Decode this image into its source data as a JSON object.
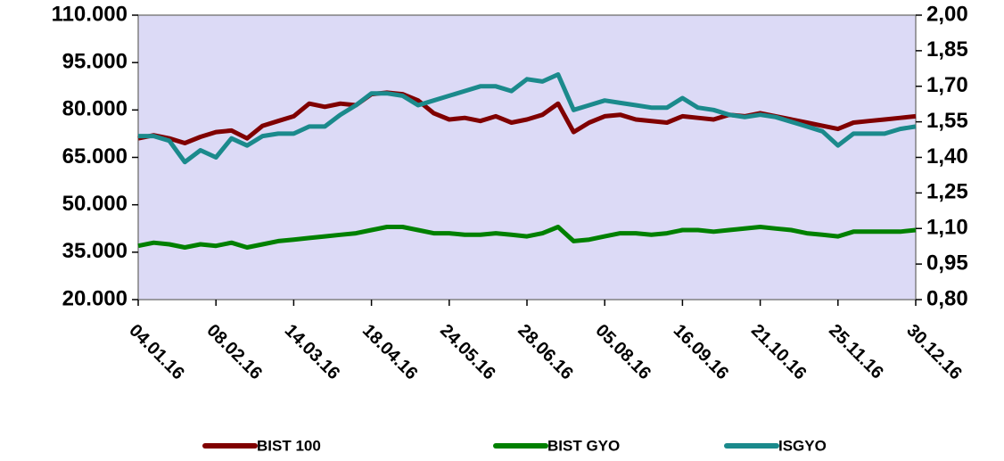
{
  "chart_data": {
    "type": "line",
    "categories": [
      "04.01.16",
      null,
      null,
      null,
      null,
      "08.02.16",
      null,
      null,
      null,
      null,
      "14.03.16",
      null,
      null,
      null,
      null,
      "18.04.16",
      null,
      null,
      null,
      null,
      "24.05.16",
      null,
      null,
      null,
      null,
      "28.06.16",
      null,
      null,
      null,
      null,
      "05.08.16",
      null,
      null,
      null,
      null,
      "16.09.16",
      null,
      null,
      null,
      null,
      "21.10.16",
      null,
      null,
      null,
      null,
      "25.11.16",
      null,
      null,
      null,
      null,
      "30.12.16"
    ],
    "series": [
      {
        "name": "BIST 100",
        "color": "#800000",
        "values": [
          71000,
          72000,
          71000,
          69500,
          71500,
          73000,
          73500,
          71000,
          75000,
          76500,
          78000,
          82000,
          81000,
          82000,
          81500,
          85000,
          85500,
          85000,
          83000,
          79000,
          77000,
          77500,
          76500,
          78000,
          76000,
          77000,
          78500,
          82000,
          73000,
          76000,
          78000,
          78500,
          77000,
          76500,
          76000,
          78000,
          77500,
          77000,
          78500,
          78000,
          79000,
          78000,
          77000,
          76000,
          75000,
          74000,
          76000,
          76500,
          77000,
          77500,
          78000
        ]
      },
      {
        "name": "BIST GYO",
        "color": "#008000",
        "values": [
          37000,
          38000,
          37500,
          36500,
          37500,
          37000,
          38000,
          36500,
          37500,
          38500,
          39000,
          39500,
          40000,
          40500,
          41000,
          42000,
          43000,
          43000,
          42000,
          41000,
          41000,
          40500,
          40500,
          41000,
          40500,
          40000,
          41000,
          43000,
          38500,
          39000,
          40000,
          41000,
          41000,
          40500,
          41000,
          42000,
          42000,
          41500,
          42000,
          42500,
          43000,
          42500,
          42000,
          41000,
          40500,
          40000,
          41500,
          41500,
          41500,
          41500,
          42000
        ]
      },
      {
        "name": "ISGYO",
        "color": "#1b8a8c",
        "axis": "y2",
        "values": [
          1.49,
          1.49,
          1.47,
          1.38,
          1.43,
          1.4,
          1.48,
          1.45,
          1.49,
          1.5,
          1.5,
          1.53,
          1.53,
          1.58,
          1.62,
          1.67,
          1.67,
          1.66,
          1.62,
          1.64,
          1.66,
          1.68,
          1.7,
          1.7,
          1.68,
          1.73,
          1.72,
          1.75,
          1.6,
          1.62,
          1.64,
          1.63,
          1.62,
          1.61,
          1.61,
          1.65,
          1.61,
          1.6,
          1.58,
          1.57,
          1.58,
          1.57,
          1.55,
          1.53,
          1.51,
          1.45,
          1.5,
          1.5,
          1.5,
          1.52,
          1.53
        ]
      }
    ],
    "ylim": [
      20000,
      110000
    ],
    "yticks": [
      {
        "value": 20000,
        "label": "20.000"
      },
      {
        "value": 35000,
        "label": "35.000"
      },
      {
        "value": 50000,
        "label": "50.000"
      },
      {
        "value": 65000,
        "label": "65.000"
      },
      {
        "value": 80000,
        "label": "80.000"
      },
      {
        "value": 95000,
        "label": "95.000"
      },
      {
        "value": 110000,
        "label": "110.000"
      }
    ],
    "y2lim": [
      0.8,
      2.0
    ],
    "y2ticks": [
      {
        "value": 0.8,
        "label": "0,80"
      },
      {
        "value": 0.95,
        "label": "0,95"
      },
      {
        "value": 1.1,
        "label": "1,10"
      },
      {
        "value": 1.25,
        "label": "1,25"
      },
      {
        "value": 1.4,
        "label": "1,40"
      },
      {
        "value": 1.55,
        "label": "1,55"
      },
      {
        "value": 1.7,
        "label": "1,70"
      },
      {
        "value": 1.85,
        "label": "1,85"
      },
      {
        "value": 2.0,
        "label": "2,00"
      }
    ],
    "plot_background": "#dcdaf6",
    "legend": "bottom"
  }
}
